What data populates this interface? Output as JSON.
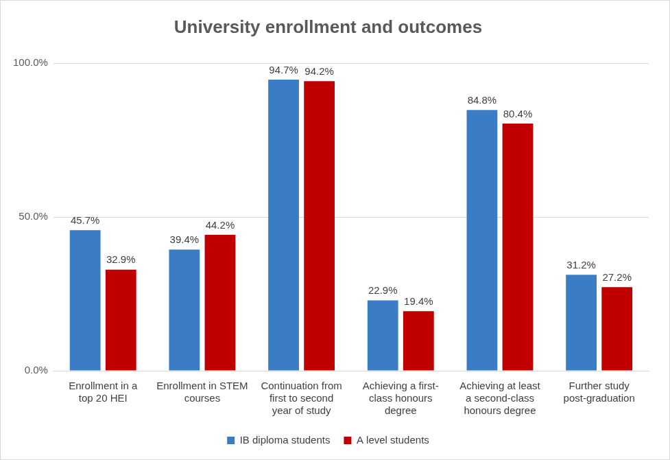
{
  "chart_data": {
    "type": "bar",
    "title": "University enrollment and outcomes",
    "categories": [
      "Enrollment in a top 20 HEI",
      "Enrollment in STEM courses",
      "Continuation from first to second year of study",
      "Achieving a first-class honours degree",
      "Achieving at least a second-class honours degree",
      "Further study post-graduation"
    ],
    "series": [
      {
        "name": "IB diploma students",
        "color": "#3b7dc4",
        "values": [
          45.7,
          39.4,
          94.7,
          22.9,
          84.8,
          31.2
        ],
        "value_labels": [
          "45.7%",
          "39.4%",
          "94.7%",
          "22.9%",
          "84.8%",
          "31.2%"
        ]
      },
      {
        "name": "A level students",
        "color": "#c00000",
        "values": [
          32.9,
          44.2,
          94.2,
          19.4,
          80.4,
          27.2
        ],
        "value_labels": [
          "32.9%",
          "44.2%",
          "94.2%",
          "19.4%",
          "80.4%",
          "27.2%"
        ]
      }
    ],
    "ylim": [
      0,
      100
    ],
    "yticks": [
      {
        "value": 0,
        "label": "0.0%"
      },
      {
        "value": 50,
        "label": "50.0%"
      },
      {
        "value": 100,
        "label": "100.0%"
      }
    ],
    "grid": true,
    "legend": "bottom",
    "data_labels": true
  }
}
